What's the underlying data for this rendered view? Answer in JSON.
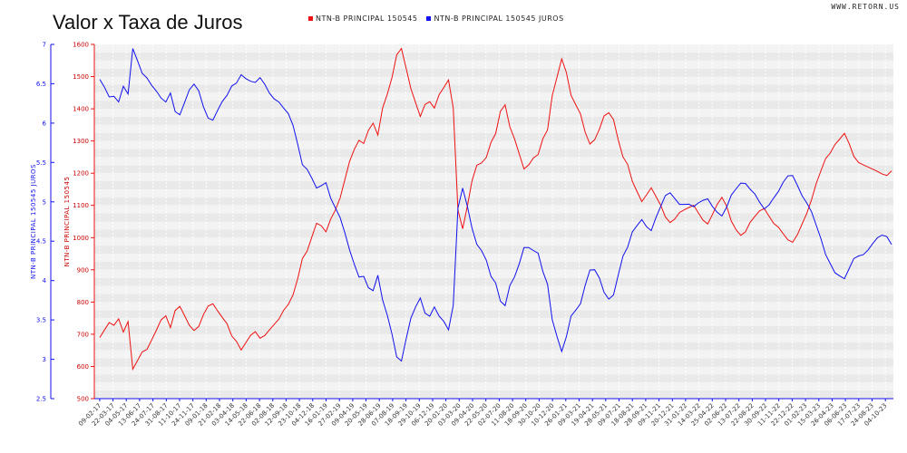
{
  "header": {
    "title": "Valor x Taxa de Juros",
    "site": "WWW.RETORN.US"
  },
  "chart_data": {
    "type": "line",
    "title": "Valor x Taxa de Juros",
    "legend_placement": "top-center",
    "grid": true,
    "colors": {
      "price": "#ee1111",
      "rate": "#1111ee"
    },
    "series": [
      {
        "name": "NTN-B PRINCIPAL 150545",
        "axis": "left-inner",
        "color": "#ee1111"
      },
      {
        "name": "NTN-B PRINCIPAL 150545 JUROS",
        "axis": "left-outer",
        "color": "#1111ee"
      }
    ],
    "y_price": {
      "label": "NTN-B PRINCIPAL 150545",
      "ylim": [
        500,
        1600
      ],
      "ticks": [
        500,
        600,
        700,
        800,
        900,
        1000,
        1100,
        1200,
        1300,
        1400,
        1500,
        1600
      ]
    },
    "y_rate": {
      "label": "NTN-B PRINCIPAL 150545 JUROS",
      "ylim": [
        2.5,
        7
      ],
      "ticks": [
        "2.5",
        "3",
        "3.5",
        "4",
        "4.5",
        "5",
        "5.5",
        "6",
        "6.5",
        "7"
      ]
    },
    "x_labels": [
      "09-02-17",
      "22-03-17",
      "04-05-17",
      "13-06-17",
      "24-07-17",
      "31-08-17",
      "11-10-17",
      "24-11-17",
      "09-01-18",
      "21-02-18",
      "03-04-18",
      "14-05-18",
      "22-06-18",
      "02-08-18",
      "12-09-18",
      "23-10-18",
      "04-12-18",
      "16-01-19",
      "27-02-19",
      "09-04-19",
      "20-05-19",
      "28-06-19",
      "07-08-19",
      "18-09-19",
      "29-10-19",
      "06-12-19",
      "20-01-20",
      "03-03-20",
      "09-04-20",
      "22-05-20",
      "02-07-20",
      "11-08-20",
      "18-09-20",
      "30-10-20",
      "10-12-20",
      "26-01-21",
      "09-03-21",
      "19-04-21",
      "28-05-21",
      "09-07-21",
      "18-08-21",
      "28-09-21",
      "09-11-21",
      "20-12-21",
      "31-01-22",
      "14-03-22",
      "25-04-22",
      "02-06-22",
      "13-07-22",
      "22-08-22",
      "30-09-22",
      "11-11-22",
      "22-12-22",
      "01-02-23",
      "15-03-23",
      "26-04-23",
      "06-06-23",
      "17-07-23",
      "24-08-23",
      "04-10-23"
    ],
    "price_values": [
      690,
      710,
      730,
      720,
      740,
      700,
      735,
      590,
      620,
      650,
      660,
      690,
      720,
      750,
      760,
      720,
      770,
      780,
      750,
      720,
      705,
      720,
      760,
      790,
      800,
      780,
      760,
      740,
      700,
      680,
      650,
      670,
      690,
      700,
      680,
      690,
      710,
      730,
      750,
      780,
      800,
      830,
      880,
      940,
      960,
      1000,
      1040,
      1030,
      1010,
      1050,
      1080,
      1120,
      1180,
      1240,
      1280,
      1310,
      1300,
      1340,
      1360,
      1320,
      1400,
      1440,
      1490,
      1560,
      1580,
      1520,
      1460,
      1420,
      1380,
      1420,
      1430,
      1410,
      1450,
      1470,
      1490,
      1400,
      1080,
      1020,
      1090,
      1170,
      1220,
      1230,
      1250,
      1300,
      1330,
      1400,
      1420,
      1350,
      1310,
      1260,
      1210,
      1220,
      1240,
      1250,
      1300,
      1330,
      1440,
      1500,
      1560,
      1520,
      1450,
      1420,
      1390,
      1330,
      1290,
      1300,
      1330,
      1370,
      1380,
      1360,
      1300,
      1250,
      1230,
      1180,
      1150,
      1120,
      1140,
      1160,
      1130,
      1100,
      1060,
      1040,
      1050,
      1070,
      1080,
      1090,
      1100,
      1080,
      1060,
      1050,
      1080,
      1110,
      1130,
      1100,
      1050,
      1020,
      1000,
      1010,
      1040,
      1060,
      1080,
      1090,
      1070,
      1050,
      1040,
      1020,
      1000,
      990,
      1010,
      1040,
      1070,
      1110,
      1160,
      1200,
      1240,
      1260,
      1290,
      1310,
      1330,
      1300,
      1260,
      1240,
      1230,
      1220,
      1210,
      1200,
      1190,
      1185,
      1200
    ]
  }
}
